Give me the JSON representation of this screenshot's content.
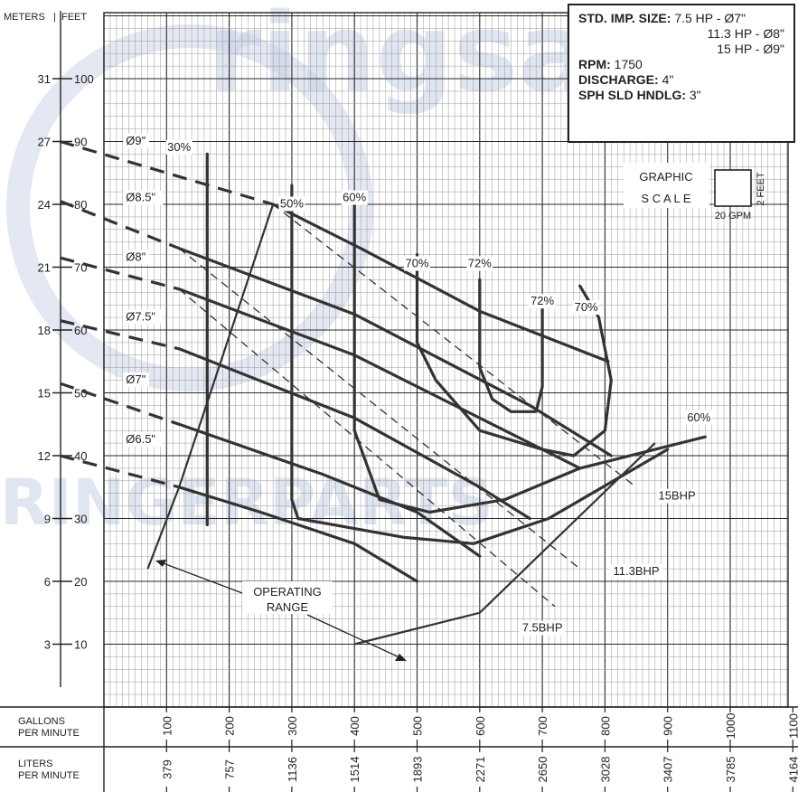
{
  "left_header": {
    "meters": "METERS",
    "feet": "FEET"
  },
  "spec": {
    "std_label": "STD. IMP. SIZE:",
    "std_lines": [
      "7.5 HP - Ø7\"",
      "11.3 HP - Ø8\"",
      "15 HP - Ø9\""
    ],
    "rpm_label": "RPM:",
    "rpm_value": "1750",
    "discharge_label": "DISCHARGE:",
    "discharge_value": "4\"",
    "sph_label": "SPH SLD HNDLG:",
    "sph_value": "3\""
  },
  "graphic_scale": {
    "line1": "GRAPHIC",
    "line2": "SCALE",
    "feet": "2 FEET",
    "gpm": "20 GPM"
  },
  "axes": {
    "x_gpm_label": [
      "GALLONS",
      "PER MINUTE"
    ],
    "x_lpm_label": [
      "LITERS",
      "PER MINUTE"
    ],
    "gpm_ticks": [
      "100",
      "200",
      "300",
      "400",
      "500",
      "600",
      "700",
      "800",
      "900",
      "1000",
      "1100"
    ],
    "lpm_ticks": [
      "379",
      "757",
      "1136",
      "1514",
      "1893",
      "2271",
      "2650",
      "3028",
      "3407",
      "3785",
      "4164"
    ],
    "feet_ticks": [
      "10",
      "20",
      "30",
      "40",
      "50",
      "60",
      "70",
      "80",
      "90",
      "100"
    ],
    "meter_ticks": [
      "3",
      "6",
      "9",
      "12",
      "15",
      "18",
      "21",
      "24",
      "27",
      "31"
    ]
  },
  "operating_range_label": [
    "OPERATING",
    "RANGE"
  ],
  "watermark": {
    "top": "ringsan",
    "bottom": "RINGERPARTS"
  },
  "chart_data": {
    "type": "line",
    "title": "",
    "xlabel": "GALLONS PER MINUTE",
    "ylabel": "FEET",
    "xlim": [
      0,
      1100
    ],
    "ylim": [
      0,
      110
    ],
    "impeller_curves": [
      {
        "name": "Ø9\"",
        "label_pos": [
          35,
          89.5
        ],
        "dashed": [
          [
            -70,
            90
          ],
          [
            270,
            80
          ]
        ],
        "solid": [
          [
            270,
            80
          ],
          [
            410,
            73
          ],
          [
            600,
            63
          ],
          [
            805,
            55
          ]
        ]
      },
      {
        "name": "Ø8.5\"",
        "label_pos": [
          35,
          80.5
        ],
        "dashed": [
          [
            -70,
            80.5
          ],
          [
            120,
            73
          ]
        ],
        "solid": [
          [
            120,
            73
          ],
          [
            400,
            62.5
          ],
          [
            680,
            48
          ],
          [
            810,
            40
          ]
        ]
      },
      {
        "name": "Ø8\"",
        "label_pos": [
          35,
          71
        ],
        "dashed": [
          [
            -70,
            71.5
          ],
          [
            120,
            66.5
          ]
        ],
        "solid": [
          [
            120,
            66.5
          ],
          [
            400,
            56
          ],
          [
            640,
            44
          ],
          [
            760,
            38
          ]
        ]
      },
      {
        "name": "Ø7.5\"",
        "label_pos": [
          35,
          61.5
        ],
        "dashed": [
          [
            -70,
            61.5
          ],
          [
            120,
            57
          ]
        ],
        "solid": [
          [
            120,
            57
          ],
          [
            400,
            46
          ],
          [
            600,
            35
          ],
          [
            680,
            30
          ]
        ]
      },
      {
        "name": "Ø7\"",
        "label_pos": [
          35,
          51.5
        ],
        "dashed": [
          [
            -70,
            51.5
          ],
          [
            120,
            45
          ]
        ],
        "solid": [
          [
            120,
            45
          ],
          [
            350,
            37
          ],
          [
            500,
            31
          ],
          [
            600,
            24
          ]
        ]
      },
      {
        "name": "Ø6.5\"",
        "label_pos": [
          35,
          42
        ],
        "dashed": [
          [
            -70,
            40
          ],
          [
            120,
            35
          ]
        ],
        "solid": [
          [
            120,
            35
          ],
          [
            250,
            31
          ],
          [
            400,
            26
          ],
          [
            500,
            20
          ]
        ]
      }
    ],
    "efficiency_curves": [
      {
        "label": "30%",
        "label_pos": [
          120,
          88.5
        ],
        "points": [
          [
            165,
            88
          ],
          [
            165,
            29
          ]
        ]
      },
      {
        "label": "50%",
        "label_pos": [
          300,
          79.5
        ],
        "points": [
          [
            300,
            83
          ],
          [
            300,
            33
          ],
          [
            310,
            30
          ],
          [
            480,
            27
          ],
          [
            590,
            26
          ],
          [
            710,
            30
          ],
          [
            900,
            41
          ]
        ]
      },
      {
        "label": "60%",
        "label_pos": [
          400,
          80.5
        ],
        "points": [
          [
            400,
            80
          ],
          [
            400,
            44
          ],
          [
            440,
            33
          ],
          [
            520,
            31
          ],
          [
            640,
            33
          ],
          [
            760,
            38
          ],
          [
            960,
            43
          ]
        ]
      },
      {
        "label": "60%",
        "label_pos": [
          950,
          45.5
        ],
        "points": []
      },
      {
        "label": "70%",
        "label_pos": [
          500,
          70
        ],
        "points": [
          [
            500,
            72
          ],
          [
            500,
            58
          ],
          [
            530,
            52
          ],
          [
            600,
            44
          ],
          [
            700,
            41
          ],
          [
            750,
            40
          ],
          [
            800,
            44
          ],
          [
            810,
            52
          ],
          [
            790,
            62
          ],
          [
            760,
            67
          ]
        ]
      },
      {
        "label": "72%",
        "label_pos": [
          600,
          70
        ],
        "points": [
          [
            600,
            68
          ],
          [
            600,
            54
          ],
          [
            620,
            49
          ],
          [
            650,
            47
          ],
          [
            690,
            47
          ],
          [
            700,
            51
          ],
          [
            700,
            64
          ]
        ]
      },
      {
        "label": "72%",
        "label_pos": [
          700,
          64
        ],
        "points": []
      },
      {
        "label": "70%",
        "label_pos": [
          770,
          63
        ],
        "points": []
      }
    ],
    "bhp_lines": [
      {
        "name": "15BHP",
        "label_pos": [
          915,
          33
        ],
        "points": [
          [
            270,
            80
          ],
          [
            850,
            35
          ]
        ]
      },
      {
        "name": "11.3BHP",
        "label_pos": [
          850,
          21
        ],
        "points": [
          [
            120,
            73
          ],
          [
            760,
            22
          ]
        ]
      },
      {
        "name": "7.5BHP",
        "label_pos": [
          700,
          12
        ],
        "points": [
          [
            120,
            66.5
          ],
          [
            720,
            16
          ]
        ]
      }
    ],
    "operating_range": {
      "points": [
        [
          70,
          22
        ],
        [
          120,
          35
        ],
        [
          270,
          80
        ]
      ],
      "lower": [
        [
          400,
          10
        ],
        [
          600,
          15
        ],
        [
          880,
          42
        ]
      ]
    }
  }
}
